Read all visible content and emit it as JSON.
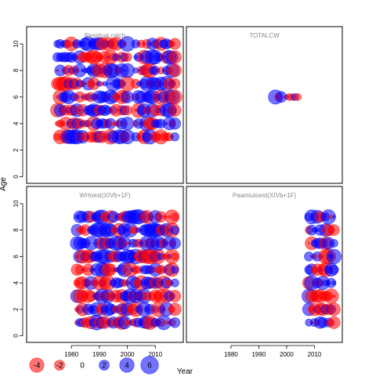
{
  "chart_data": {
    "type": "scatter",
    "encoding": "bubble: circle area proportional to |residual|; red = negative, blue = positive",
    "colors": {
      "negative": "#ff0000",
      "positive": "#0000ff",
      "alpha": 0.55
    },
    "xlabel": "Year",
    "ylabel": "Age",
    "xlim": [
      1964,
      2020
    ],
    "ylim": [
      -0.5,
      11.3
    ],
    "x_ticks": [
      1980,
      1990,
      2000,
      2010
    ],
    "y_ticks": [
      0,
      2,
      4,
      6,
      8,
      10
    ],
    "grid": false,
    "legend": {
      "placement": "bottom-left",
      "values": [
        -4,
        -2,
        0,
        2,
        4,
        6
      ],
      "labels": [
        "-4",
        "-2",
        "0",
        "2",
        "4",
        "6"
      ]
    },
    "panels": [
      {
        "title": "Residual catch",
        "years": [
          1975,
          2017
        ],
        "gap": [
          2001,
          2002
        ],
        "ages": [
          3,
          4,
          5,
          6,
          7,
          8,
          9,
          10
        ]
      },
      {
        "title": "TOTALCW",
        "years": [
          1996,
          2004
        ],
        "gap": [],
        "ages": [
          6
        ]
      },
      {
        "title": "WHoest(XIVb+1F)",
        "years": [
          1982,
          2017
        ],
        "gap": [],
        "ages": [
          1,
          2,
          3,
          4,
          5,
          6,
          7,
          8,
          9
        ]
      },
      {
        "title": "Paamiutoest(XIVb+1F)",
        "years": [
          2008,
          2017
        ],
        "gap": [],
        "ages": [
          1,
          2,
          3,
          4,
          5,
          6,
          7,
          8,
          9
        ]
      }
    ],
    "residual_range": [
      -4,
      6
    ]
  }
}
